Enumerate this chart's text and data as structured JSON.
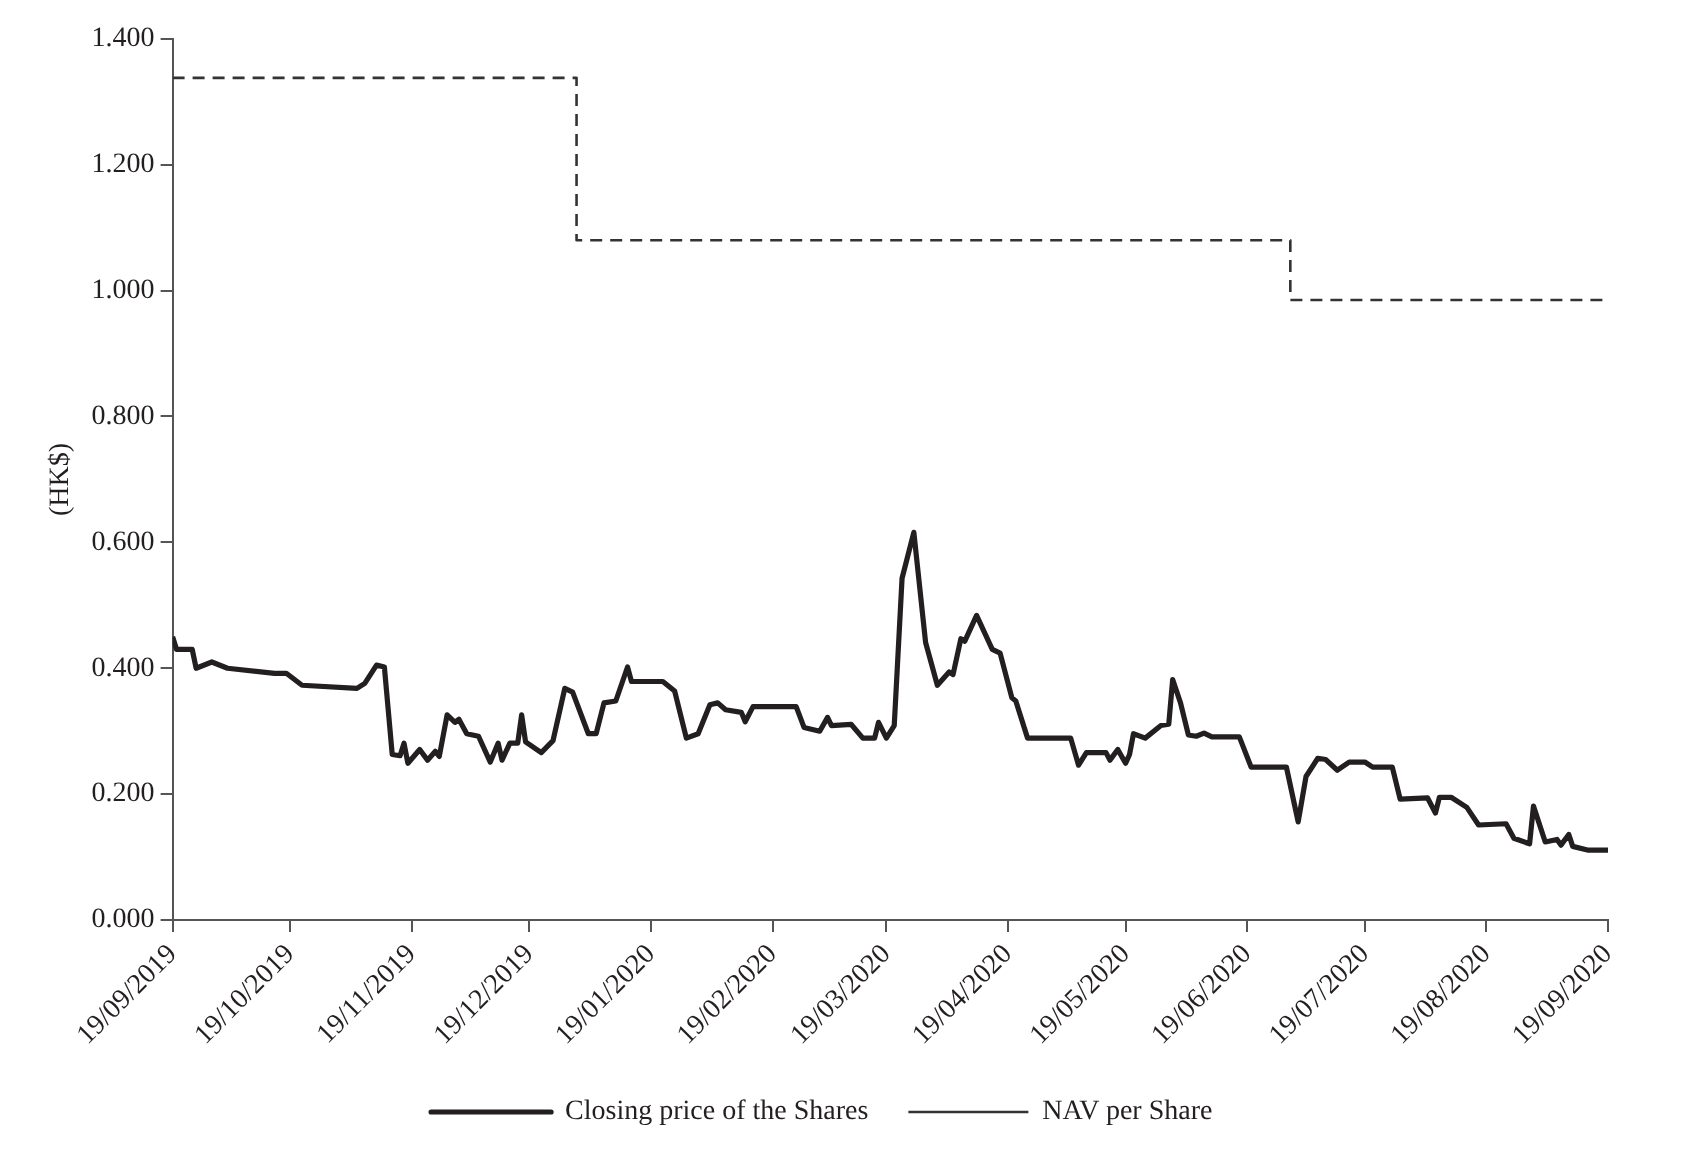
{
  "chart_data": {
    "type": "line",
    "ylabel": "(HK$)",
    "xlim": [
      "2019-09-19",
      "2020-09-19"
    ],
    "xticks": [
      {
        "value": "2019-09-19",
        "label": "19/09/2019"
      },
      {
        "value": "2019-10-19",
        "label": "19/10/2019"
      },
      {
        "value": "2019-11-19",
        "label": "19/11/2019"
      },
      {
        "value": "2019-12-19",
        "label": "19/12/2019"
      },
      {
        "value": "2020-01-19",
        "label": "19/01/2020"
      },
      {
        "value": "2020-02-19",
        "label": "19/02/2020"
      },
      {
        "value": "2020-03-19",
        "label": "19/03/2020"
      },
      {
        "value": "2020-04-19",
        "label": "19/04/2020"
      },
      {
        "value": "2020-05-19",
        "label": "19/05/2020"
      },
      {
        "value": "2020-06-19",
        "label": "19/06/2020"
      },
      {
        "value": "2020-07-19",
        "label": "19/07/2020"
      },
      {
        "value": "2020-08-19",
        "label": "19/08/2020"
      },
      {
        "value": "2020-09-19",
        "label": "19/09/2020"
      }
    ],
    "ylim": [
      0,
      1.4
    ],
    "yticks": [
      {
        "value": 0,
        "label": "0.000"
      },
      {
        "value": 0.2,
        "label": "0.200"
      },
      {
        "value": 0.4,
        "label": "0.400"
      },
      {
        "value": 0.6,
        "label": "0.600"
      },
      {
        "value": 0.8,
        "label": "0.800"
      },
      {
        "value": 1.0,
        "label": "1.000"
      },
      {
        "value": 1.2,
        "label": "1.200"
      },
      {
        "value": 1.4,
        "label": "1.400"
      }
    ],
    "grid": false,
    "legend": "bottom",
    "marker": "none",
    "series": [
      {
        "name": "Closing price of the Shares",
        "type": "line",
        "color": "#231f20",
        "line_style": "solid",
        "x": [
          "2019-09-19",
          "2019-09-20",
          "2019-09-24",
          "2019-09-25",
          "2019-09-29",
          "2019-10-03",
          "2019-10-15",
          "2019-10-18",
          "2019-10-22",
          "2019-11-05",
          "2019-11-07",
          "2019-11-10",
          "2019-11-12",
          "2019-11-14",
          "2019-11-16",
          "2019-11-17",
          "2019-11-18",
          "2019-11-21",
          "2019-11-23",
          "2019-11-25",
          "2019-11-26",
          "2019-11-28",
          "2019-11-30",
          "2019-12-01",
          "2019-12-03",
          "2019-12-06",
          "2019-12-09",
          "2019-12-11",
          "2019-12-12",
          "2019-12-14",
          "2019-12-16",
          "2019-12-17",
          "2019-12-18",
          "2019-12-22",
          "2019-12-25",
          "2019-12-28",
          "2019-12-30",
          "2020-01-03",
          "2020-01-05",
          "2020-01-07",
          "2020-01-10",
          "2020-01-13",
          "2020-01-14",
          "2020-01-22",
          "2020-01-25",
          "2020-01-28",
          "2020-01-31",
          "2020-02-03",
          "2020-02-05",
          "2020-02-07",
          "2020-02-11",
          "2020-02-12",
          "2020-02-14",
          "2020-02-25",
          "2020-02-27",
          "2020-03-02",
          "2020-03-04",
          "2020-03-05",
          "2020-03-10",
          "2020-03-13",
          "2020-03-16",
          "2020-03-17",
          "2020-03-19",
          "2020-03-21",
          "2020-03-23",
          "2020-03-26",
          "2020-03-29",
          "2020-04-01",
          "2020-04-04",
          "2020-04-05",
          "2020-04-07",
          "2020-04-08",
          "2020-04-11",
          "2020-04-15",
          "2020-04-17",
          "2020-04-20",
          "2020-04-21",
          "2020-04-24",
          "2020-05-05",
          "2020-05-07",
          "2020-05-09",
          "2020-05-14",
          "2020-05-15",
          "2020-05-17",
          "2020-05-19",
          "2020-05-20",
          "2020-05-21",
          "2020-05-24",
          "2020-05-28",
          "2020-05-30",
          "2020-05-31",
          "2020-06-02",
          "2020-06-04",
          "2020-06-06",
          "2020-06-08",
          "2020-06-10",
          "2020-06-17",
          "2020-06-20",
          "2020-06-29",
          "2020-07-02",
          "2020-07-04",
          "2020-07-07",
          "2020-07-09",
          "2020-07-12",
          "2020-07-15",
          "2020-07-19",
          "2020-07-21",
          "2020-07-26",
          "2020-07-28",
          "2020-08-04",
          "2020-08-06",
          "2020-08-07",
          "2020-08-10",
          "2020-08-14",
          "2020-08-17",
          "2020-08-24",
          "2020-08-26",
          "2020-08-30",
          "2020-08-31",
          "2020-09-03",
          "2020-09-06",
          "2020-09-07",
          "2020-09-09",
          "2020-09-10",
          "2020-09-14",
          "2020-09-19"
        ],
        "values": [
          0.45,
          0.43,
          0.43,
          0.4,
          0.41,
          0.4,
          0.392,
          0.392,
          0.373,
          0.368,
          0.376,
          0.405,
          0.402,
          0.263,
          0.261,
          0.281,
          0.249,
          0.271,
          0.254,
          0.268,
          0.26,
          0.326,
          0.314,
          0.319,
          0.296,
          0.292,
          0.251,
          0.281,
          0.254,
          0.281,
          0.281,
          0.326,
          0.283,
          0.266,
          0.285,
          0.368,
          0.362,
          0.296,
          0.296,
          0.345,
          0.348,
          0.402,
          0.379,
          0.379,
          0.364,
          0.289,
          0.296,
          0.342,
          0.345,
          0.334,
          0.33,
          0.315,
          0.339,
          0.339,
          0.306,
          0.3,
          0.322,
          0.309,
          0.311,
          0.289,
          0.289,
          0.314,
          0.289,
          0.309,
          0.543,
          0.616,
          0.441,
          0.373,
          0.394,
          0.39,
          0.447,
          0.443,
          0.484,
          0.43,
          0.424,
          0.353,
          0.348,
          0.289,
          0.289,
          0.246,
          0.266,
          0.266,
          0.254,
          0.271,
          0.249,
          0.263,
          0.296,
          0.289,
          0.309,
          0.311,
          0.382,
          0.345,
          0.294,
          0.292,
          0.297,
          0.291,
          0.291,
          0.243,
          0.243,
          0.156,
          0.228,
          0.257,
          0.255,
          0.238,
          0.251,
          0.251,
          0.243,
          0.243,
          0.192,
          0.194,
          0.17,
          0.195,
          0.195,
          0.179,
          0.151,
          0.153,
          0.13,
          0.121,
          0.181,
          0.124,
          0.128,
          0.119,
          0.136,
          0.117,
          0.111,
          0.111
        ]
      },
      {
        "name": "NAV per Share",
        "type": "step",
        "color": "#333333",
        "line_style": "dashed",
        "x": [
          "2019-09-19",
          "2019-12-31",
          "2020-06-30",
          "2020-09-19"
        ],
        "values": [
          1.338,
          1.08,
          0.985,
          0.985
        ]
      }
    ]
  }
}
